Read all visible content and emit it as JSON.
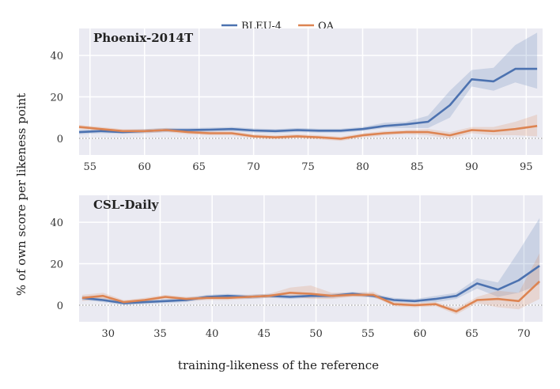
{
  "legend": {
    "items": [
      "BLEU-4",
      "QA"
    ]
  },
  "axes": {
    "xlabel": "training-likeness of the reference",
    "ylabel": "% of own score per likeness point"
  },
  "chart_data": [
    {
      "type": "line",
      "title": "Phoenix-2014T",
      "xlabel": "training-likeness of the reference",
      "ylabel": "% of own score per likeness point",
      "xlim": [
        54,
        96.5
      ],
      "ylim": [
        -8,
        53
      ],
      "xticks": [
        55,
        60,
        65,
        70,
        75,
        80,
        85,
        90,
        95
      ],
      "yticks": [
        0,
        20,
        40
      ],
      "grid": true,
      "legend_position": "top-center",
      "reference_line_y": 0,
      "x": [
        54,
        56,
        58,
        60,
        62,
        64,
        66,
        68,
        70,
        72,
        74,
        76,
        78,
        80,
        82,
        84,
        86,
        88,
        90,
        92,
        94,
        96
      ],
      "series": [
        {
          "name": "BLEU-4",
          "color": "#4c72b0",
          "values": [
            3,
            3.5,
            3,
            3.5,
            4,
            4,
            4.2,
            4.5,
            3.8,
            3.5,
            4,
            3.7,
            3.7,
            4.5,
            6,
            6.8,
            8,
            16,
            28.5,
            27.5,
            33.5,
            33.5
          ],
          "lower": [
            2,
            2.5,
            2.2,
            2.5,
            3,
            3,
            3.2,
            3.5,
            2.8,
            2.5,
            3,
            2.7,
            2.7,
            3.5,
            5,
            5,
            5,
            10,
            25,
            23,
            27,
            24
          ],
          "upper": [
            4,
            4.5,
            4,
            4.5,
            5,
            5,
            5.2,
            5.5,
            4.8,
            4.5,
            5,
            4.7,
            4.7,
            5.5,
            7.5,
            8,
            11,
            23,
            33,
            34,
            45,
            51
          ]
        },
        {
          "name": "QA",
          "color": "#dd8452",
          "values": [
            5.5,
            4.5,
            3.5,
            3.5,
            4,
            3,
            2.5,
            2.5,
            1,
            0.5,
            1,
            0.5,
            -0.2,
            1.5,
            2.5,
            3,
            3,
            1.5,
            4,
            3.5,
            4.5,
            6
          ],
          "lower": [
            4.5,
            3.5,
            2.5,
            2.5,
            3,
            2,
            1.5,
            1.5,
            0,
            -0.5,
            0,
            -0.5,
            -1.2,
            0.5,
            1.5,
            2,
            1.5,
            0,
            2.5,
            1.5,
            1.5,
            1
          ],
          "upper": [
            6.5,
            5.5,
            4.5,
            4.5,
            5,
            4,
            3.5,
            3.5,
            2,
            1.5,
            2,
            1.5,
            0.8,
            2.5,
            3.5,
            4,
            4.5,
            3,
            5.5,
            5.5,
            8,
            11.5
          ]
        }
      ]
    },
    {
      "type": "line",
      "title": "CSL-Daily",
      "xlabel": "training-likeness of the reference",
      "ylabel": "% of own score per likeness point",
      "xlim": [
        27.2,
        71.8
      ],
      "ylim": [
        -8,
        53
      ],
      "xticks": [
        30,
        35,
        40,
        45,
        50,
        55,
        60,
        65,
        70
      ],
      "yticks": [
        0,
        20,
        40
      ],
      "grid": true,
      "reference_line_y": 0,
      "x": [
        27.5,
        29.5,
        31.5,
        33.5,
        35.5,
        37.5,
        39.5,
        41.5,
        43.5,
        45.5,
        47.5,
        49.5,
        51.5,
        53.5,
        55.5,
        57.5,
        59.5,
        61.5,
        63.5,
        65.5,
        67.5,
        69.5,
        71.5
      ],
      "series": [
        {
          "name": "BLEU-4",
          "color": "#4c72b0",
          "values": [
            3.5,
            2.5,
            1,
            1.5,
            2,
            2.5,
            4,
            4.5,
            4,
            4.5,
            4,
            4.5,
            4.5,
            5.5,
            4.5,
            2.5,
            2,
            3,
            4.5,
            10.5,
            7.5,
            12,
            19
          ],
          "lower": [
            2.5,
            1.5,
            0,
            0.5,
            1,
            1.5,
            3,
            3.5,
            3,
            3.5,
            3,
            3.5,
            3.5,
            4.5,
            3.5,
            1.5,
            1,
            1.5,
            3,
            8,
            4,
            6,
            10
          ],
          "upper": [
            4.5,
            3.5,
            2,
            2.5,
            3,
            3.5,
            5,
            5.5,
            5,
            5.5,
            5,
            5.5,
            5.5,
            6.5,
            5.5,
            3.5,
            3,
            4.5,
            6,
            13,
            11,
            26,
            42
          ]
        },
        {
          "name": "QA",
          "color": "#dd8452",
          "values": [
            3.5,
            4.5,
            1.5,
            2.5,
            4,
            3,
            3.5,
            3.5,
            4,
            4.5,
            6,
            5.5,
            4.5,
            5,
            5,
            0.5,
            0,
            0.5,
            -3,
            2.5,
            3,
            2,
            11.5
          ],
          "lower": [
            2,
            3,
            0.5,
            1.5,
            3,
            2,
            2.5,
            2.5,
            3,
            3.5,
            4,
            3,
            3,
            4,
            4,
            -0.5,
            -1,
            -0.5,
            -4.5,
            1,
            -1,
            -2,
            3
          ],
          "upper": [
            5,
            6,
            2.5,
            3.5,
            5,
            4,
            4.5,
            4.5,
            5,
            5.5,
            8.5,
            9.5,
            6,
            6,
            6.5,
            1.5,
            1,
            1.5,
            -1.5,
            4,
            7,
            6,
            25
          ]
        }
      ]
    }
  ]
}
